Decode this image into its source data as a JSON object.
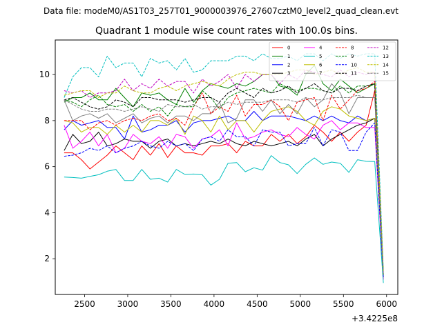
{
  "figure": {
    "suptitle": "Data file: modeM0/AS1T03_257T01_9000003976_27607cztM0_level2_quad_clean.evt"
  },
  "chart_data": {
    "type": "line",
    "title": "Quadrant 1 module wise count rates with 100.0s bins.",
    "xlabel": "",
    "ylabel": "",
    "x_offset_label": "+3.4225e8",
    "xlim": [
      2160,
      6130
    ],
    "ylim": [
      0.45,
      11.5
    ],
    "xticks": [
      2500,
      3000,
      3500,
      4000,
      4500,
      5000,
      5500,
      6000
    ],
    "yticks": [
      2,
      4,
      6,
      8,
      10
    ],
    "grid": false,
    "legend": {
      "placement": "top-right",
      "columns": 4
    },
    "x": [
      2263,
      2363,
      2463,
      2563,
      2663,
      2763,
      2863,
      2963,
      3063,
      3163,
      3263,
      3363,
      3463,
      3563,
      3663,
      3763,
      3863,
      3963,
      4063,
      4163,
      4263,
      4363,
      4463,
      4563,
      4663,
      4763,
      4863,
      4963,
      5063,
      5163,
      5263,
      5363,
      5463,
      5563,
      5663,
      5763,
      5863,
      5963
    ],
    "series": [
      {
        "name": "0",
        "color": "#ff0000",
        "dash": "solid",
        "values": [
          6.6,
          6.6,
          6.3,
          5.9,
          6.2,
          6.5,
          6.9,
          6.6,
          6.3,
          6.9,
          6.5,
          7.0,
          6.4,
          6.9,
          6.6,
          6.6,
          6.5,
          6.9,
          6.9,
          7.0,
          6.6,
          7.1,
          6.9,
          6.9,
          7.4,
          7.1,
          7.4,
          7.0,
          7.3,
          7.8,
          7.5,
          7.1,
          7.5,
          7.1,
          7.5,
          7.8,
          9.3,
          1.1
        ]
      },
      {
        "name": "1",
        "color": "#008000",
        "dash": "solid",
        "values": [
          8.8,
          9.0,
          9.0,
          9.2,
          8.9,
          8.9,
          9.4,
          9.0,
          8.6,
          9.2,
          9.1,
          9.2,
          8.9,
          8.7,
          9.4,
          8.8,
          9.3,
          9.6,
          9.5,
          9.4,
          9.6,
          9.5,
          9.7,
          10.0,
          10.0,
          9.5,
          9.4,
          9.1,
          10.0,
          10.4,
          9.6,
          9.3,
          9.8,
          9.5,
          9.2,
          9.4,
          9.6,
          1.3
        ]
      },
      {
        "name": "2",
        "color": "#0000ff",
        "dash": "solid",
        "values": [
          7.6,
          8.0,
          7.8,
          7.9,
          8.0,
          7.7,
          7.7,
          7.2,
          8.2,
          7.5,
          7.6,
          7.8,
          7.8,
          8.0,
          7.5,
          7.9,
          8.0,
          8.0,
          8.1,
          8.2,
          8.0,
          8.0,
          8.4,
          8.0,
          8.2,
          8.2,
          8.2,
          8.1,
          8.0,
          8.2,
          8.0,
          8.2,
          8.0,
          7.9,
          8.2,
          8.0,
          8.1,
          1.2
        ]
      },
      {
        "name": "3",
        "color": "#000000",
        "dash": "solid",
        "values": [
          6.7,
          7.4,
          7.0,
          7.1,
          7.5,
          6.9,
          7.0,
          7.2,
          7.1,
          7.1,
          6.8,
          7.1,
          7.2,
          6.9,
          7.0,
          6.9,
          7.0,
          7.1,
          7.0,
          7.2,
          7.0,
          6.9,
          7.1,
          7.0,
          6.9,
          7.0,
          7.1,
          6.9,
          7.2,
          7.4,
          6.9,
          7.2,
          7.4,
          7.6,
          7.8,
          7.9,
          8.1,
          1.2
        ]
      },
      {
        "name": "4",
        "color": "#ff00ff",
        "dash": "solid",
        "values": [
          7.8,
          6.8,
          7.1,
          7.5,
          6.9,
          7.4,
          6.6,
          6.8,
          7.4,
          7.1,
          7.0,
          7.3,
          6.8,
          7.4,
          7.3,
          6.8,
          7.2,
          7.3,
          7.6,
          6.9,
          7.9,
          7.2,
          7.3,
          7.5,
          7.6,
          7.4,
          7.3,
          7.7,
          7.4,
          7.2,
          7.8,
          8.0,
          7.6,
          7.9,
          7.9,
          7.7,
          7.7,
          1.1
        ]
      },
      {
        "name": "5",
        "color": "#00bfbf",
        "dash": "solid",
        "values": [
          5.55,
          5.53,
          5.5,
          5.58,
          5.65,
          5.8,
          5.88,
          5.4,
          5.4,
          5.88,
          5.45,
          5.5,
          5.33,
          5.88,
          5.66,
          5.68,
          5.65,
          5.2,
          5.45,
          6.15,
          6.18,
          5.78,
          5.95,
          5.85,
          6.48,
          6.18,
          6.08,
          5.7,
          6.1,
          6.38,
          6.1,
          6.2,
          6.15,
          5.75,
          6.3,
          6.23,
          6.22,
          0.95
        ]
      },
      {
        "name": "6",
        "color": "#bfbf00",
        "dash": "solid",
        "values": [
          8.0,
          7.9,
          7.5,
          7.7,
          7.7,
          7.4,
          7.8,
          7.5,
          7.8,
          7.5,
          8.0,
          8.0,
          7.8,
          8.1,
          7.4,
          8.2,
          8.0,
          7.5,
          8.2,
          7.6,
          8.0,
          8.0,
          7.5,
          8.0,
          8.4,
          8.5,
          8.6,
          8.4,
          8.0,
          7.8,
          8.4,
          8.6,
          8.5,
          8.2,
          8.1,
          8.0,
          8.1,
          1.2
        ]
      },
      {
        "name": "7",
        "color": "#808080",
        "dash": "solid",
        "values": [
          8.9,
          8.0,
          8.2,
          8.3,
          8.1,
          8.3,
          7.9,
          8.1,
          8.3,
          7.9,
          8.1,
          8.2,
          7.9,
          8.2,
          8.2,
          8.0,
          8.3,
          8.3,
          8.8,
          7.9,
          8.1,
          8.9,
          8.9,
          8.4,
          8.9,
          8.3,
          8.7,
          8.3,
          9.0,
          8.6,
          8.9,
          9.6,
          9.2,
          8.3,
          9.0,
          9.0,
          9.0,
          1.3
        ]
      },
      {
        "name": "8",
        "color": "#ff0000",
        "dash": "dashed",
        "values": [
          8.0,
          8.0,
          8.0,
          7.6,
          7.9,
          8.0,
          7.8,
          8.0,
          8.1,
          8.0,
          8.2,
          8.3,
          8.0,
          8.1,
          7.8,
          8.6,
          9.2,
          8.3,
          8.6,
          8.4,
          9.1,
          8.2,
          8.7,
          8.7,
          8.9,
          8.6,
          8.0,
          8.8,
          8.9,
          9.0,
          8.0,
          9.1,
          8.5,
          8.9,
          9.3,
          9.4,
          9.7,
          1.2
        ]
      },
      {
        "name": "9",
        "color": "#008000",
        "dash": "dashed",
        "values": [
          8.9,
          8.8,
          8.6,
          8.9,
          9.1,
          8.7,
          8.6,
          8.7,
          8.4,
          8.7,
          8.4,
          8.6,
          8.2,
          8.7,
          8.6,
          8.6,
          9.3,
          9.0,
          8.5,
          9.0,
          9.2,
          9.3,
          9.4,
          9.3,
          9.2,
          9.6,
          9.4,
          9.3,
          9.4,
          9.4,
          9.3,
          9.2,
          9.5,
          9.2,
          9.5,
          9.5,
          9.6,
          1.3
        ]
      },
      {
        "name": "10",
        "color": "#0000ff",
        "dash": "dashed",
        "values": [
          6.45,
          6.5,
          6.6,
          6.8,
          6.7,
          6.9,
          6.6,
          6.8,
          6.9,
          7.1,
          6.9,
          6.8,
          7.1,
          6.9,
          7.0,
          6.7,
          7.2,
          7.3,
          7.1,
          7.6,
          7.3,
          7.3,
          6.9,
          7.6,
          7.5,
          7.5,
          6.9,
          7.0,
          7.0,
          7.7,
          6.9,
          7.6,
          7.5,
          6.7,
          6.7,
          7.5,
          7.9,
          1.2
        ]
      },
      {
        "name": "11",
        "color": "#000000",
        "dash": "dashed",
        "values": [
          8.9,
          9.0,
          8.8,
          8.6,
          8.5,
          8.6,
          8.9,
          8.8,
          8.6,
          9.0,
          9.0,
          8.9,
          8.9,
          8.9,
          8.8,
          8.9,
          9.0,
          9.0,
          8.8,
          9.2,
          9.4,
          9.2,
          9.0,
          9.4,
          9.2,
          9.3,
          9.5,
          9.2,
          9.4,
          9.6,
          9.3,
          9.2,
          9.4,
          9.4,
          9.3,
          9.5,
          9.6,
          1.4
        ]
      },
      {
        "name": "12",
        "color": "#bf00bf",
        "dash": "dashed",
        "values": [
          9.3,
          9.2,
          9.3,
          9.0,
          9.2,
          9.2,
          9.3,
          9.8,
          9.3,
          9.6,
          9.4,
          9.8,
          9.5,
          9.7,
          9.7,
          9.2,
          9.8,
          9.5,
          9.7,
          10.0,
          9.4,
          10.0,
          9.7,
          10.0,
          10.0,
          9.6,
          10.0,
          9.8,
          10.2,
          10.1,
          10.0,
          9.9,
          10.2,
          9.9,
          10.1,
          10.0,
          10.1,
          1.4
        ]
      },
      {
        "name": "13",
        "color": "#00bfbf",
        "dash": "dashed",
        "values": [
          9.0,
          9.9,
          10.3,
          10.3,
          9.9,
          10.8,
          10.3,
          10.5,
          10.5,
          9.9,
          10.7,
          10.5,
          10.6,
          10.2,
          10.7,
          10.1,
          10.2,
          10.6,
          10.6,
          10.6,
          10.8,
          10.8,
          10.6,
          10.9,
          10.7,
          10.7,
          10.8,
          10.6,
          10.9,
          10.9,
          10.6,
          10.9,
          10.7,
          10.9,
          10.8,
          10.9,
          10.9,
          1.5
        ]
      },
      {
        "name": "14",
        "color": "#bfbf00",
        "dash": "dashed",
        "values": [
          9.1,
          9.2,
          9.3,
          9.3,
          9.0,
          9.2,
          9.2,
          9.5,
          9.3,
          9.2,
          9.2,
          9.4,
          9.5,
          9.3,
          9.5,
          9.6,
          9.7,
          9.6,
          9.5,
          9.8,
          10.0,
          10.1,
          10.1,
          10.0,
          10.0,
          10.0,
          10.1,
          10.2,
          10.2,
          10.0,
          10.1,
          10.2,
          10.0,
          10.2,
          10.3,
          10.1,
          10.1,
          1.4
        ]
      },
      {
        "name": "15",
        "color": "#808080",
        "dash": "dashed",
        "values": [
          8.9,
          8.7,
          8.5,
          8.4,
          8.4,
          8.5,
          8.5,
          8.4,
          8.5,
          8.6,
          8.5,
          8.4,
          8.7,
          8.6,
          8.6,
          8.7,
          8.5,
          8.6,
          8.6,
          8.8,
          8.7,
          8.8,
          8.8,
          8.8,
          8.9,
          8.9,
          8.9,
          8.8,
          9.0,
          8.9,
          8.9,
          9.0,
          9.0,
          9.0,
          9.1,
          9.0,
          9.0,
          1.3
        ]
      }
    ]
  }
}
